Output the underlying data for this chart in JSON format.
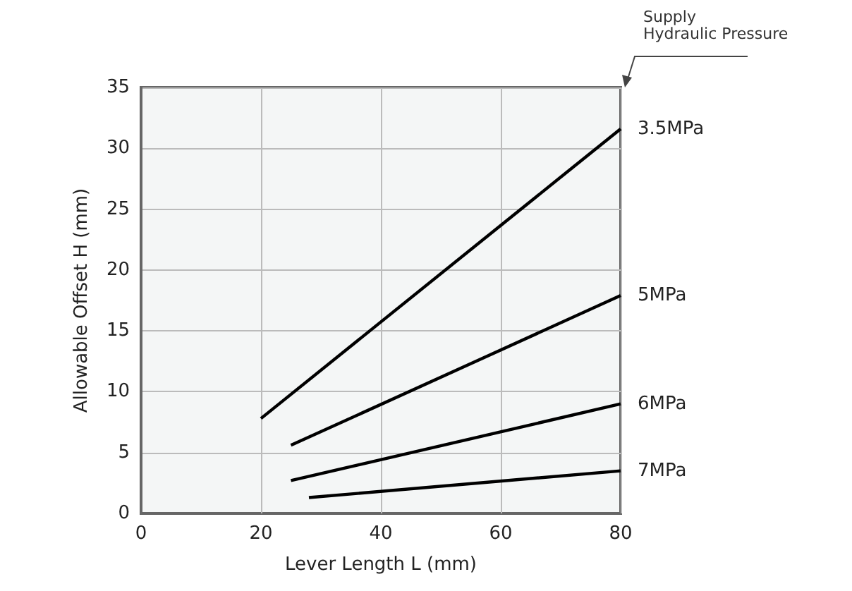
{
  "chart_data": {
    "type": "line",
    "xlabel": "Lever Length L (mm)",
    "ylabel": "Allowable Offset H (mm)",
    "xlim": [
      0,
      80
    ],
    "xticks": [
      0,
      20,
      40,
      60,
      80
    ],
    "ylim": [
      0,
      35
    ],
    "yticks": [
      0,
      5,
      10,
      15,
      20,
      25,
      30,
      35
    ],
    "grid": true,
    "legend": false,
    "marker": "none",
    "line_style": "solid",
    "annotations": [
      "Supply\nHydraulic Pressure"
    ],
    "series": [
      {
        "name": "3.5MPa",
        "color": "#000000",
        "x": [
          20,
          80
        ],
        "values": [
          7.8,
          31.6
        ]
      },
      {
        "name": "5MPa",
        "color": "#000000",
        "x": [
          25,
          80
        ],
        "values": [
          5.6,
          17.9
        ]
      },
      {
        "name": "6MPa",
        "color": "#000000",
        "x": [
          25,
          80
        ],
        "values": [
          2.7,
          9.0
        ]
      },
      {
        "name": "7MPa",
        "color": "#000000",
        "x": [
          28,
          80
        ],
        "values": [
          1.3,
          3.5
        ]
      }
    ]
  }
}
